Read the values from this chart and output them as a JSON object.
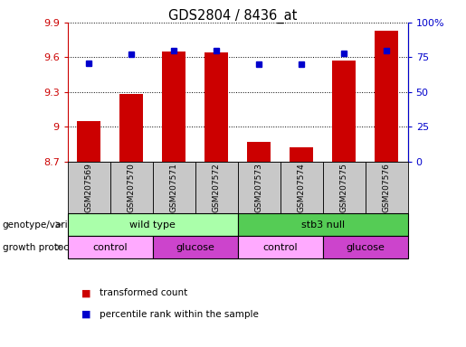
{
  "title": "GDS2804 / 8436_at",
  "samples": [
    "GSM207569",
    "GSM207570",
    "GSM207571",
    "GSM207572",
    "GSM207573",
    "GSM207574",
    "GSM207575",
    "GSM207576"
  ],
  "transformed_count": [
    9.05,
    9.28,
    9.65,
    9.64,
    8.87,
    8.82,
    9.57,
    9.83
  ],
  "percentile_rank": [
    71,
    77,
    80,
    80,
    70,
    70,
    78,
    80
  ],
  "ylim_left": [
    8.7,
    9.9
  ],
  "ylim_right": [
    0,
    100
  ],
  "yticks_left": [
    8.7,
    9.0,
    9.3,
    9.6,
    9.9
  ],
  "ytick_labels_left": [
    "8.7",
    "9",
    "9.3",
    "9.6",
    "9.9"
  ],
  "yticks_right": [
    0,
    25,
    50,
    75,
    100
  ],
  "ytick_labels_right": [
    "0",
    "25",
    "50",
    "75",
    "100%"
  ],
  "bar_color": "#cc0000",
  "dot_color": "#0000cc",
  "bar_bottom": 8.7,
  "genotype_groups": [
    {
      "label": "wild type",
      "start": 0,
      "end": 4,
      "color": "#aaffaa"
    },
    {
      "label": "stb3 null",
      "start": 4,
      "end": 8,
      "color": "#55cc55"
    }
  ],
  "growth_groups": [
    {
      "label": "control",
      "start": 0,
      "end": 2,
      "color": "#ffaaff"
    },
    {
      "label": "glucose",
      "start": 2,
      "end": 4,
      "color": "#cc44cc"
    },
    {
      "label": "control",
      "start": 4,
      "end": 6,
      "color": "#ffaaff"
    },
    {
      "label": "glucose",
      "start": 6,
      "end": 8,
      "color": "#cc44cc"
    }
  ],
  "legend_labels": [
    "transformed count",
    "percentile rank within the sample"
  ],
  "legend_colors": [
    "#cc0000",
    "#0000cc"
  ],
  "tick_color_left": "#cc0000",
  "tick_color_right": "#0000cc",
  "spine_color_left": "#cc0000",
  "spine_color_right": "#0000cc"
}
